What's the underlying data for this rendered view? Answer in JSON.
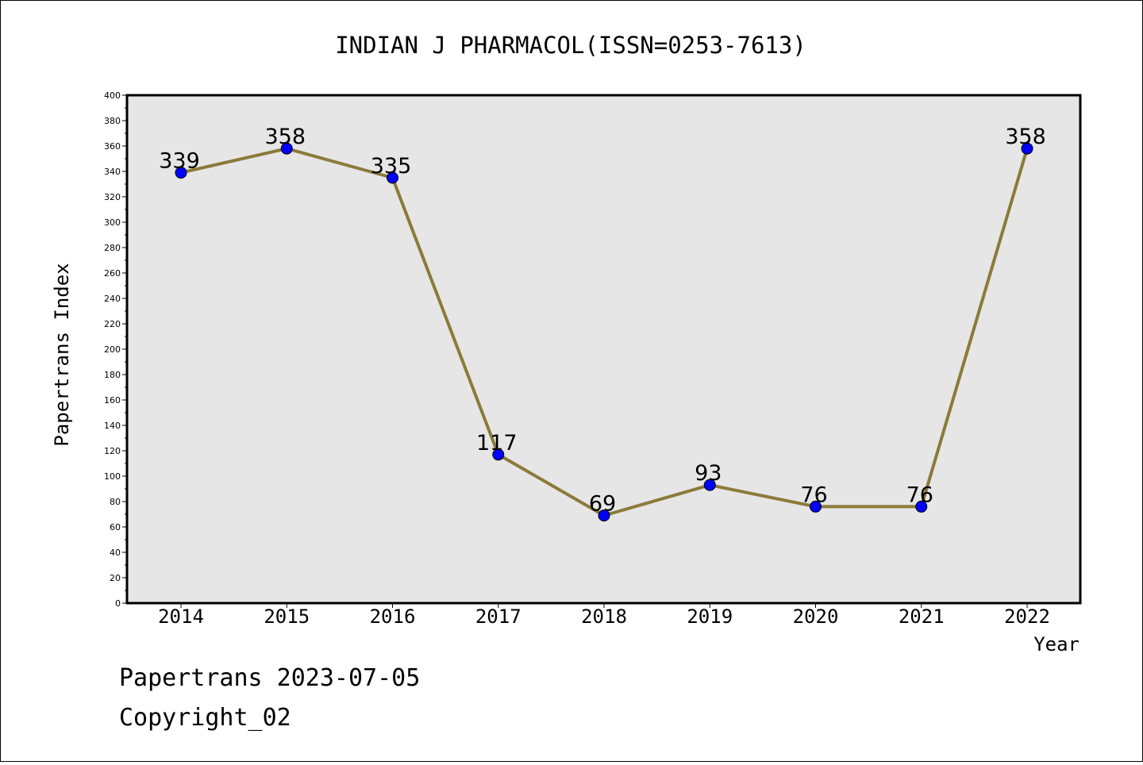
{
  "chart_data": {
    "type": "line",
    "title": "INDIAN J PHARMACOL(ISSN=0253-7613)",
    "xlabel": "Year",
    "ylabel": "Papertrans Index",
    "categories": [
      "2014",
      "2015",
      "2016",
      "2017",
      "2018",
      "2019",
      "2020",
      "2021",
      "2022"
    ],
    "values": [
      339,
      358,
      335,
      117,
      69,
      93,
      76,
      76,
      358
    ],
    "data_labels": [
      "339",
      "358",
      "335",
      "117",
      "69",
      "93",
      "76",
      "76",
      "358"
    ],
    "ylim": [
      0,
      400
    ],
    "yticks": [
      0,
      20,
      40,
      60,
      80,
      100,
      120,
      140,
      160,
      180,
      200,
      220,
      240,
      260,
      280,
      300,
      320,
      340,
      360,
      380,
      400
    ],
    "grid": false,
    "colors": {
      "plot_background": "#e6e6e6",
      "line": "#8b7a3a",
      "marker": "#0000ff"
    }
  },
  "footer": {
    "line1": "Papertrans 2023-07-05",
    "line2": "Copyright_02"
  }
}
